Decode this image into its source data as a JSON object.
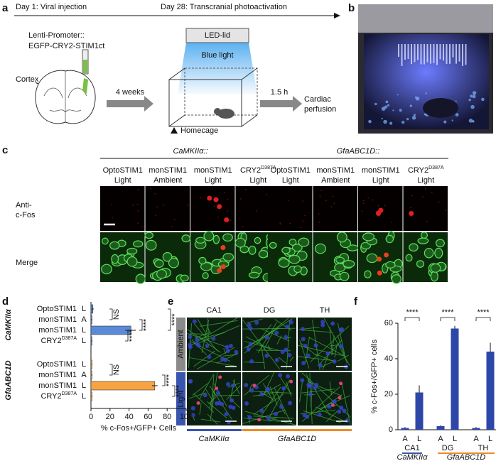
{
  "panel_labels": [
    "a",
    "b",
    "c",
    "d",
    "e",
    "f"
  ],
  "panel_a": {
    "timeline": [
      "Day 1: Viral injection",
      "Day 28: Transcranial photoactivation"
    ],
    "construct": [
      "Lenti-Promoter::",
      "EGFP-CRY2-STIM1ct"
    ],
    "region": "Cortex",
    "wait": "4 weeks",
    "lid": "LED-lid",
    "light": "Blue light",
    "cage": "Homecage",
    "delay": "1.5 h",
    "endpoint": [
      "Cardiac",
      "perfusion"
    ]
  },
  "panel_c": {
    "groups": [
      {
        "promoter": "CaMKIIα::",
        "columns": [
          {
            "construct": "OptoSTIM1",
            "condition": "Light"
          },
          {
            "construct": "monSTIM1",
            "condition": "Ambient"
          },
          {
            "construct": "monSTIM1",
            "condition": "Light"
          },
          {
            "construct": "CRY2",
            "sup": "D387A",
            "condition": "Light"
          }
        ]
      },
      {
        "promoter": "GfaABC1D::",
        "columns": [
          {
            "construct": "OptoSTIM1",
            "condition": "Light"
          },
          {
            "construct": "monSTIM1",
            "condition": "Ambient"
          },
          {
            "construct": "monSTIM1",
            "condition": "Light"
          },
          {
            "construct": "CRY2",
            "sup": "D387A",
            "condition": "Light"
          }
        ]
      }
    ],
    "rows": [
      [
        "Anti-",
        "c-Fos"
      ],
      [
        "Merge"
      ]
    ]
  },
  "panel_e": {
    "columns": [
      "CA1",
      "DG",
      "TH"
    ],
    "rows": [
      "Ambient",
      "Light"
    ],
    "promoters": [
      "CaMKIIα",
      "GfaABC1D"
    ]
  },
  "chart_data": [
    {
      "type": "hbar",
      "group_labels": [
        "CaMKIIα",
        "GfaABC1D"
      ],
      "group_colors": [
        "#5b8bd8",
        "#f6a443"
      ],
      "categories": [
        "OptoSTIM1",
        "monSTIM1",
        "monSTIM1",
        "CRY2",
        "OptoSTIM1",
        "monSTIM1",
        "monSTIM1",
        "CRY2"
      ],
      "category_sups": [
        null,
        null,
        null,
        "D387A",
        null,
        null,
        null,
        "D387A"
      ],
      "conditions": [
        "L",
        "A",
        "L",
        "L",
        "L",
        "A",
        "L",
        "L"
      ],
      "values": [
        2,
        1,
        42,
        1,
        1,
        1,
        67,
        1
      ],
      "errors": [
        1,
        0.5,
        5,
        0.5,
        0.5,
        0.5,
        3,
        0.5
      ],
      "xlim": [
        0,
        100
      ],
      "xticks": [
        0,
        20,
        40,
        60,
        80,
        100
      ],
      "xlabel": "% c-Fos+/GFP+ Cells",
      "annotations": [
        "NS",
        "****",
        "****",
        "****",
        "NS",
        "****",
        "****"
      ]
    },
    {
      "type": "bar",
      "categories": [
        "A",
        "L",
        "A",
        "L",
        "A",
        "L"
      ],
      "groups": [
        "CA1",
        "DG",
        "TH"
      ],
      "promoters": [
        "CaMKIIα",
        "GfaABC1D"
      ],
      "promoter_colors": [
        "#3a55b0",
        "#f08a24"
      ],
      "color": "#2d47a8",
      "values": [
        1,
        21,
        2,
        57,
        1,
        44
      ],
      "errors": [
        0.5,
        4,
        0.5,
        1.5,
        0.5,
        5
      ],
      "ylim": [
        0,
        60
      ],
      "yticks": [
        0,
        20,
        40,
        60
      ],
      "ylabel": "% c-Fos+/GFP+ cells",
      "annotations": [
        "****",
        "****",
        "****"
      ]
    }
  ]
}
